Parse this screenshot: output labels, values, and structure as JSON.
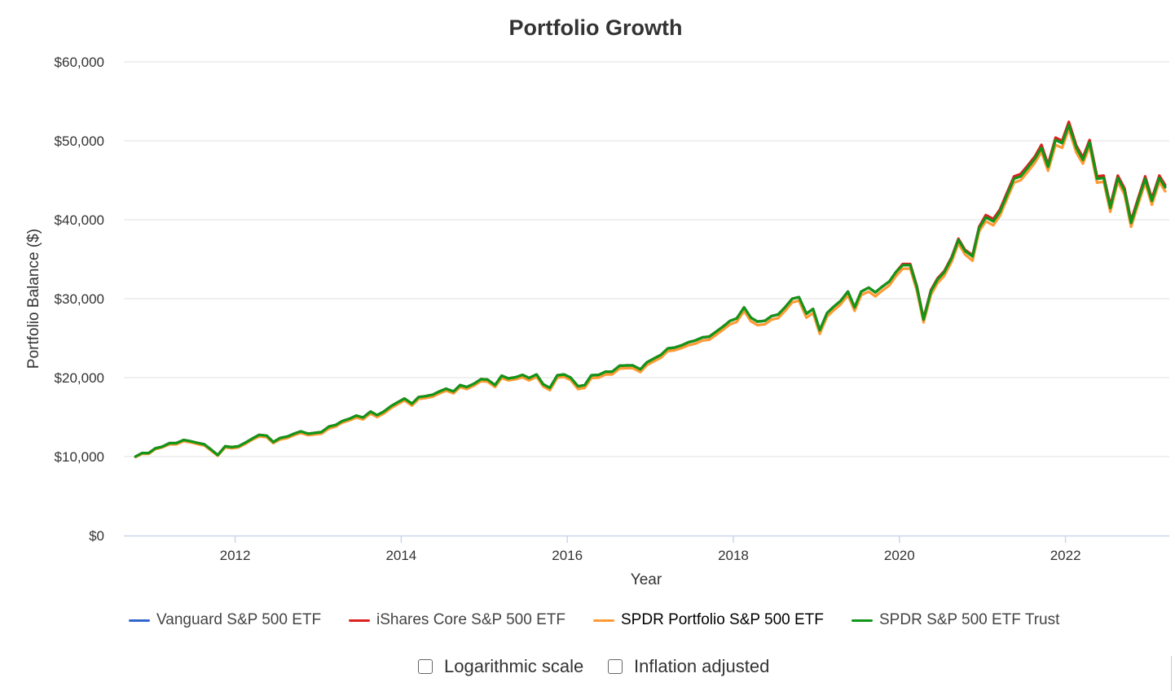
{
  "chart_data": {
    "type": "line",
    "title": "Portfolio Growth",
    "xlabel": "Year",
    "ylabel": "Portfolio Balance ($)",
    "xlim": [
      2010.66,
      2023.25
    ],
    "ylim": [
      0,
      60000
    ],
    "x_ticks": [
      2012,
      2014,
      2016,
      2018,
      2020,
      2022
    ],
    "y_ticks": [
      0,
      10000,
      20000,
      30000,
      40000,
      50000,
      60000
    ],
    "y_tick_labels": [
      "$0",
      "$10,000",
      "$20,000",
      "$30,000",
      "$40,000",
      "$50,000",
      "$60,000"
    ],
    "grid": true,
    "legend_position": "bottom",
    "x": [
      2010.8,
      2010.88,
      2010.96,
      2011.04,
      2011.12,
      2011.21,
      2011.29,
      2011.38,
      2011.46,
      2011.54,
      2011.63,
      2011.71,
      2011.79,
      2011.88,
      2011.96,
      2012.04,
      2012.13,
      2012.21,
      2012.29,
      2012.38,
      2012.46,
      2012.54,
      2012.63,
      2012.71,
      2012.79,
      2012.88,
      2012.96,
      2013.04,
      2013.13,
      2013.21,
      2013.29,
      2013.38,
      2013.46,
      2013.54,
      2013.63,
      2013.71,
      2013.79,
      2013.88,
      2013.96,
      2014.04,
      2014.13,
      2014.21,
      2014.29,
      2014.38,
      2014.46,
      2014.54,
      2014.63,
      2014.71,
      2014.79,
      2014.88,
      2014.96,
      2015.04,
      2015.13,
      2015.21,
      2015.29,
      2015.38,
      2015.46,
      2015.54,
      2015.63,
      2015.71,
      2015.79,
      2015.88,
      2015.96,
      2016.04,
      2016.13,
      2016.21,
      2016.29,
      2016.38,
      2016.46,
      2016.54,
      2016.63,
      2016.71,
      2016.79,
      2016.88,
      2016.96,
      2017.04,
      2017.13,
      2017.21,
      2017.29,
      2017.38,
      2017.46,
      2017.54,
      2017.63,
      2017.71,
      2017.79,
      2017.88,
      2017.96,
      2018.04,
      2018.13,
      2018.21,
      2018.29,
      2018.38,
      2018.46,
      2018.54,
      2018.63,
      2018.71,
      2018.79,
      2018.88,
      2018.96,
      2019.04,
      2019.13,
      2019.21,
      2019.29,
      2019.38,
      2019.46,
      2019.54,
      2019.63,
      2019.71,
      2019.79,
      2019.88,
      2019.96,
      2020.04,
      2020.13,
      2020.21,
      2020.29,
      2020.38,
      2020.46,
      2020.54,
      2020.63,
      2020.71,
      2020.79,
      2020.88,
      2020.96,
      2021.04,
      2021.13,
      2021.21,
      2021.29,
      2021.38,
      2021.46,
      2021.54,
      2021.63,
      2021.71,
      2021.79,
      2021.88,
      2021.96,
      2022.04,
      2022.13,
      2022.21,
      2022.29,
      2022.38,
      2022.46,
      2022.54,
      2022.63,
      2022.71,
      2022.79,
      2022.88,
      2022.96,
      2023.04,
      2023.13,
      2023.2
    ],
    "series": [
      {
        "name": "Vanguard S&P 500 ETF",
        "color": "#3366cc",
        "values": [
          10000,
          10450,
          10450,
          11050,
          11250,
          11700,
          11700,
          12100,
          11950,
          11750,
          11550,
          10900,
          10200,
          11300,
          11200,
          11300,
          11800,
          12300,
          12750,
          12650,
          11850,
          12350,
          12550,
          12900,
          13200,
          12900,
          13000,
          13100,
          13800,
          14000,
          14500,
          14800,
          15200,
          14950,
          15700,
          15250,
          15700,
          16400,
          16900,
          17350,
          16700,
          17550,
          17650,
          17850,
          18250,
          18600,
          18250,
          19050,
          18800,
          19250,
          19800,
          19750,
          19050,
          20250,
          19900,
          20050,
          20350,
          19950,
          20400,
          19150,
          18700,
          20300,
          20400,
          20000,
          18900,
          19050,
          20300,
          20350,
          20750,
          20750,
          21500,
          21550,
          21550,
          21050,
          21950,
          22400,
          22900,
          23700,
          23800,
          24100,
          24500,
          24700,
          25100,
          25200,
          25800,
          26500,
          27200,
          27500,
          28900,
          27600,
          27100,
          27200,
          27800,
          28000,
          29000,
          30000,
          30200,
          28100,
          28700,
          26000,
          28200,
          29000,
          29700,
          30900,
          28900,
          30900,
          31400,
          30800,
          31500,
          32200,
          33400,
          34300,
          34300,
          31500,
          27400,
          31000,
          32500,
          33400,
          35200,
          37500,
          36100,
          35400,
          39000,
          40400,
          39900,
          41100,
          43100,
          45300,
          45600,
          46600,
          47800,
          49200,
          46800,
          50200,
          49800,
          52200,
          49200,
          47700,
          49900,
          45300,
          45400,
          41600,
          45400,
          43800,
          39700,
          42700,
          45300,
          42500,
          45400,
          44200
        ]
      },
      {
        "name": "iShares Core S&P 500 ETF",
        "color": "#dc2020",
        "values": [
          10000,
          10450,
          10450,
          11050,
          11250,
          11700,
          11700,
          12100,
          11950,
          11750,
          11550,
          10900,
          10200,
          11300,
          11200,
          11300,
          11800,
          12300,
          12750,
          12650,
          11850,
          12350,
          12550,
          12900,
          13200,
          12900,
          13000,
          13100,
          13800,
          14000,
          14500,
          14800,
          15200,
          14950,
          15700,
          15250,
          15700,
          16400,
          16900,
          17350,
          16700,
          17550,
          17650,
          17850,
          18250,
          18600,
          18250,
          19050,
          18800,
          19250,
          19800,
          19750,
          19050,
          20250,
          19900,
          20050,
          20350,
          19950,
          20400,
          19150,
          18700,
          20300,
          20400,
          20000,
          18900,
          19050,
          20300,
          20350,
          20750,
          20750,
          21500,
          21550,
          21550,
          21050,
          21950,
          22400,
          22900,
          23700,
          23800,
          24100,
          24500,
          24700,
          25100,
          25200,
          25800,
          26500,
          27200,
          27500,
          28900,
          27600,
          27100,
          27200,
          27800,
          28000,
          29000,
          30000,
          30200,
          28100,
          28700,
          26000,
          28200,
          29000,
          29700,
          30900,
          28900,
          30900,
          31400,
          30800,
          31500,
          32200,
          33400,
          34400,
          34400,
          31600,
          27500,
          31100,
          32600,
          33500,
          35300,
          37600,
          36200,
          35500,
          39100,
          40600,
          40100,
          41300,
          43300,
          45500,
          45800,
          46800,
          48000,
          49500,
          47000,
          50400,
          50000,
          52400,
          49400,
          47900,
          50100,
          45500,
          45600,
          41800,
          45600,
          44000,
          39900,
          42900,
          45500,
          42700,
          45600,
          44400
        ]
      },
      {
        "name": "SPDR Portfolio S&P 500 ETF",
        "color": "#ff9933",
        "values": [
          9950,
          10350,
          10350,
          10950,
          11150,
          11550,
          11550,
          11950,
          11800,
          11600,
          11400,
          10750,
          10100,
          11150,
          11050,
          11150,
          11650,
          12150,
          12550,
          12450,
          11700,
          12150,
          12350,
          12700,
          13000,
          12700,
          12800,
          12900,
          13550,
          13800,
          14300,
          14600,
          14950,
          14700,
          15450,
          15000,
          15450,
          16150,
          16650,
          17100,
          16450,
          17300,
          17400,
          17600,
          18000,
          18350,
          18000,
          18800,
          18550,
          19000,
          19550,
          19500,
          18800,
          19950,
          19650,
          19800,
          20050,
          19650,
          20100,
          18900,
          18400,
          20000,
          20100,
          19700,
          18550,
          18700,
          19950,
          20000,
          20400,
          20400,
          21150,
          21200,
          21200,
          20700,
          21600,
          22050,
          22550,
          23350,
          23450,
          23750,
          24100,
          24300,
          24700,
          24800,
          25400,
          26100,
          26750,
          27050,
          28450,
          27150,
          26650,
          26750,
          27350,
          27550,
          28550,
          29550,
          29750,
          27600,
          28200,
          25550,
          27750,
          28550,
          29250,
          30450,
          28450,
          30450,
          30900,
          30300,
          31000,
          31700,
          32900,
          33800,
          33800,
          31000,
          27000,
          30500,
          32000,
          32900,
          34700,
          37000,
          35600,
          34800,
          38500,
          39800,
          39300,
          40500,
          42500,
          44700,
          45000,
          46000,
          47200,
          48600,
          46200,
          49500,
          49100,
          51500,
          48500,
          47100,
          49300,
          44700,
          44800,
          41000,
          44800,
          43200,
          39100,
          42100,
          44700,
          41900,
          44800,
          43600
        ]
      },
      {
        "name": "SPDR S&P 500 ETF Trust",
        "color": "#109618",
        "values": [
          10000,
          10450,
          10450,
          11050,
          11250,
          11700,
          11700,
          12100,
          11950,
          11750,
          11550,
          10900,
          10200,
          11300,
          11200,
          11300,
          11800,
          12300,
          12750,
          12650,
          11850,
          12350,
          12550,
          12900,
          13200,
          12900,
          13000,
          13100,
          13800,
          14000,
          14500,
          14800,
          15200,
          14950,
          15700,
          15250,
          15700,
          16400,
          16900,
          17350,
          16700,
          17550,
          17650,
          17850,
          18250,
          18600,
          18250,
          19050,
          18800,
          19250,
          19800,
          19750,
          19050,
          20250,
          19900,
          20050,
          20350,
          19950,
          20400,
          19150,
          18700,
          20300,
          20400,
          20000,
          18900,
          19050,
          20300,
          20350,
          20750,
          20750,
          21500,
          21550,
          21550,
          21050,
          21950,
          22400,
          22900,
          23700,
          23800,
          24100,
          24500,
          24700,
          25100,
          25200,
          25800,
          26500,
          27200,
          27500,
          28900,
          27600,
          27100,
          27200,
          27800,
          28000,
          29000,
          30000,
          30200,
          28100,
          28700,
          26000,
          28200,
          29000,
          29700,
          30900,
          28900,
          30900,
          31400,
          30800,
          31500,
          32200,
          33400,
          34250,
          34250,
          31450,
          27350,
          30950,
          32450,
          33350,
          35150,
          37450,
          36050,
          35350,
          38950,
          40300,
          39800,
          41000,
          43000,
          45200,
          45500,
          46500,
          47700,
          49100,
          46700,
          50100,
          49700,
          52000,
          49100,
          47600,
          49800,
          45200,
          45300,
          41500,
          45300,
          43700,
          39600,
          42600,
          45200,
          42400,
          45300,
          44100
        ]
      }
    ]
  },
  "legend": {
    "items": [
      {
        "label": "Vanguard S&P 500 ETF",
        "color": "#3366cc"
      },
      {
        "label": "iShares Core S&P 500 ETF",
        "color": "#dc2020"
      },
      {
        "label": "SPDR Portfolio S&P 500 ETF",
        "color": "#ff9933"
      },
      {
        "label": "SPDR S&P 500 ETF Trust",
        "color": "#109618"
      }
    ]
  },
  "options": {
    "log_scale_label": "Logarithmic scale",
    "log_scale_checked": false,
    "inflation_label": "Inflation adjusted",
    "inflation_checked": false
  }
}
